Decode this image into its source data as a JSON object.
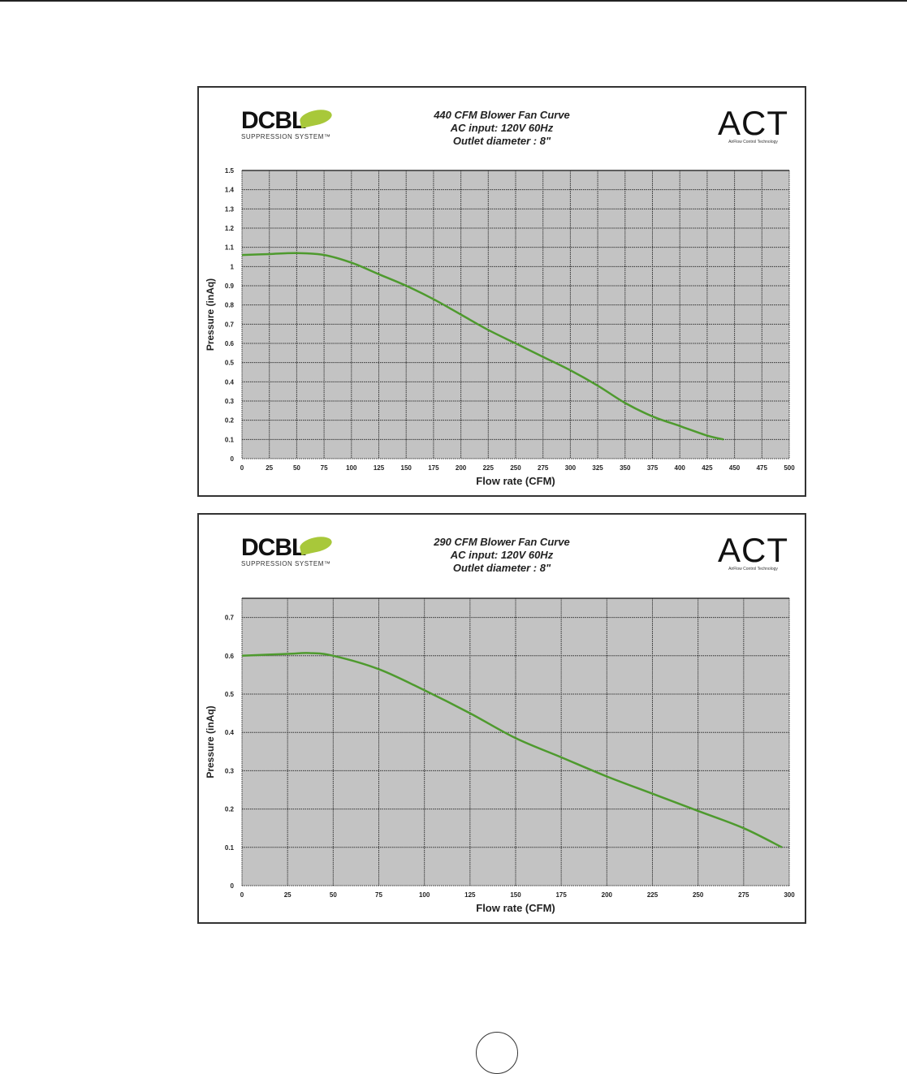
{
  "logos": {
    "left_brand": "DCBL",
    "left_sub": "SUPPRESSION SYSTEM™",
    "right_brand": "ACT",
    "right_sub": "AirFlow Control Technology"
  },
  "colors": {
    "plot_bg": "#c3c3c3",
    "curve": "#4e9a2e",
    "grid": "#333333"
  },
  "chart_data": [
    {
      "type": "line",
      "title_lines": [
        "440 CFM Blower Fan Curve",
        "AC input: 120V  60Hz",
        "Outlet diameter : 8\""
      ],
      "xlabel": "Flow rate (CFM)",
      "ylabel": "Pressure (inAq)",
      "xlim": [
        0,
        500
      ],
      "ylim": [
        0,
        1.5
      ],
      "grid": true,
      "xticks": [
        0,
        25,
        50,
        75,
        100,
        125,
        150,
        175,
        200,
        225,
        250,
        275,
        300,
        325,
        350,
        375,
        400,
        425,
        450,
        475,
        500
      ],
      "yticks": [
        0,
        0.1,
        0.2,
        0.3,
        0.4,
        0.5,
        0.6,
        0.7,
        0.8,
        0.9,
        1,
        1.1,
        1.2,
        1.3,
        1.4,
        1.5
      ],
      "ytop": 1.5,
      "series": [
        {
          "name": "440 CFM",
          "x": [
            0,
            25,
            50,
            75,
            100,
            125,
            150,
            175,
            200,
            225,
            250,
            275,
            300,
            325,
            350,
            375,
            400,
            425,
            440
          ],
          "y": [
            1.06,
            1.065,
            1.07,
            1.06,
            1.02,
            0.96,
            0.9,
            0.83,
            0.75,
            0.67,
            0.6,
            0.53,
            0.46,
            0.38,
            0.29,
            0.22,
            0.17,
            0.12,
            0.1
          ]
        }
      ]
    },
    {
      "type": "line",
      "title_lines": [
        "290 CFM Blower Fan Curve",
        "AC input: 120V  60Hz",
        "Outlet diameter : 8\""
      ],
      "xlabel": "Flow rate (CFM)",
      "ylabel": "Pressure (inAq)",
      "xlim": [
        0,
        300
      ],
      "ylim": [
        0,
        0.75
      ],
      "grid": true,
      "xticks": [
        0,
        25,
        50,
        75,
        100,
        125,
        150,
        175,
        200,
        225,
        250,
        275,
        300
      ],
      "yticks": [
        0,
        0.1,
        0.2,
        0.3,
        0.4,
        0.5,
        0.6,
        0.7
      ],
      "ytop": 0.75,
      "series": [
        {
          "name": "290 CFM",
          "x": [
            0,
            25,
            37,
            50,
            75,
            100,
            125,
            150,
            175,
            200,
            225,
            250,
            275,
            296
          ],
          "y": [
            0.6,
            0.605,
            0.607,
            0.6,
            0.565,
            0.51,
            0.45,
            0.385,
            0.335,
            0.285,
            0.24,
            0.195,
            0.15,
            0.1
          ]
        }
      ]
    }
  ]
}
